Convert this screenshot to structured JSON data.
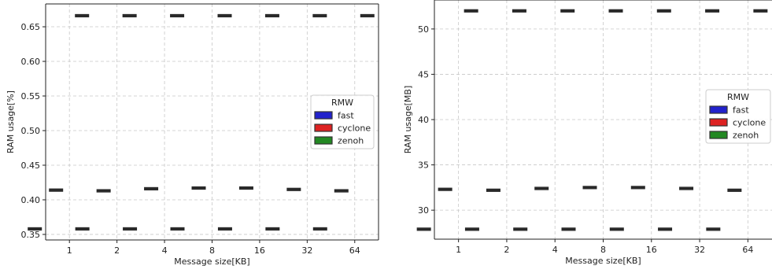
{
  "chart_data": [
    {
      "type": "box",
      "xlabel": "Message size[KB]",
      "ylabel": "RAM usage[%]",
      "categories": [
        "1",
        "2",
        "4",
        "8",
        "16",
        "32",
        "64"
      ],
      "ylim": [
        0.342,
        0.683
      ],
      "yticks": [
        0.35,
        0.4,
        0.45,
        0.5,
        0.55,
        0.6,
        0.65
      ],
      "ytick_labels": [
        "0.35",
        "0.40",
        "0.45",
        "0.50",
        "0.55",
        "0.60",
        "0.65"
      ],
      "grid": true,
      "legend": {
        "title": "RMW",
        "placement": "center-right"
      },
      "series": [
        {
          "name": "fast",
          "color": "#2222cc",
          "values": [
            0.414,
            0.413,
            0.416,
            0.417,
            0.417,
            0.415,
            0.413
          ]
        },
        {
          "name": "cyclone",
          "color": "#dd2222",
          "values": [
            0.666,
            0.666,
            0.666,
            0.666,
            0.666,
            0.666,
            0.666
          ]
        },
        {
          "name": "zenoh",
          "color": "#228822",
          "values": [
            0.358,
            0.358,
            0.358,
            0.358,
            0.358,
            0.358,
            0.358
          ]
        }
      ]
    },
    {
      "type": "box",
      "xlabel": "Message size[KB]",
      "ylabel": "RAM usage[MB]",
      "categories": [
        "1",
        "2",
        "4",
        "8",
        "16",
        "32",
        "64"
      ],
      "ylim": [
        26.8,
        53.2
      ],
      "yticks": [
        30,
        35,
        40,
        45,
        50
      ],
      "ytick_labels": [
        "30",
        "35",
        "40",
        "45",
        "50"
      ],
      "grid": true,
      "legend": {
        "title": "RMW",
        "placement": "center-right"
      },
      "series": [
        {
          "name": "fast",
          "color": "#2222cc",
          "values": [
            32.3,
            32.2,
            32.4,
            32.5,
            32.5,
            32.4,
            32.2
          ]
        },
        {
          "name": "cyclone",
          "color": "#dd2222",
          "values": [
            52.0,
            52.0,
            52.0,
            52.0,
            52.0,
            52.0,
            52.0
          ]
        },
        {
          "name": "zenoh",
          "color": "#228822",
          "values": [
            27.9,
            27.9,
            27.9,
            27.9,
            27.9,
            27.9,
            27.9
          ]
        }
      ]
    }
  ]
}
